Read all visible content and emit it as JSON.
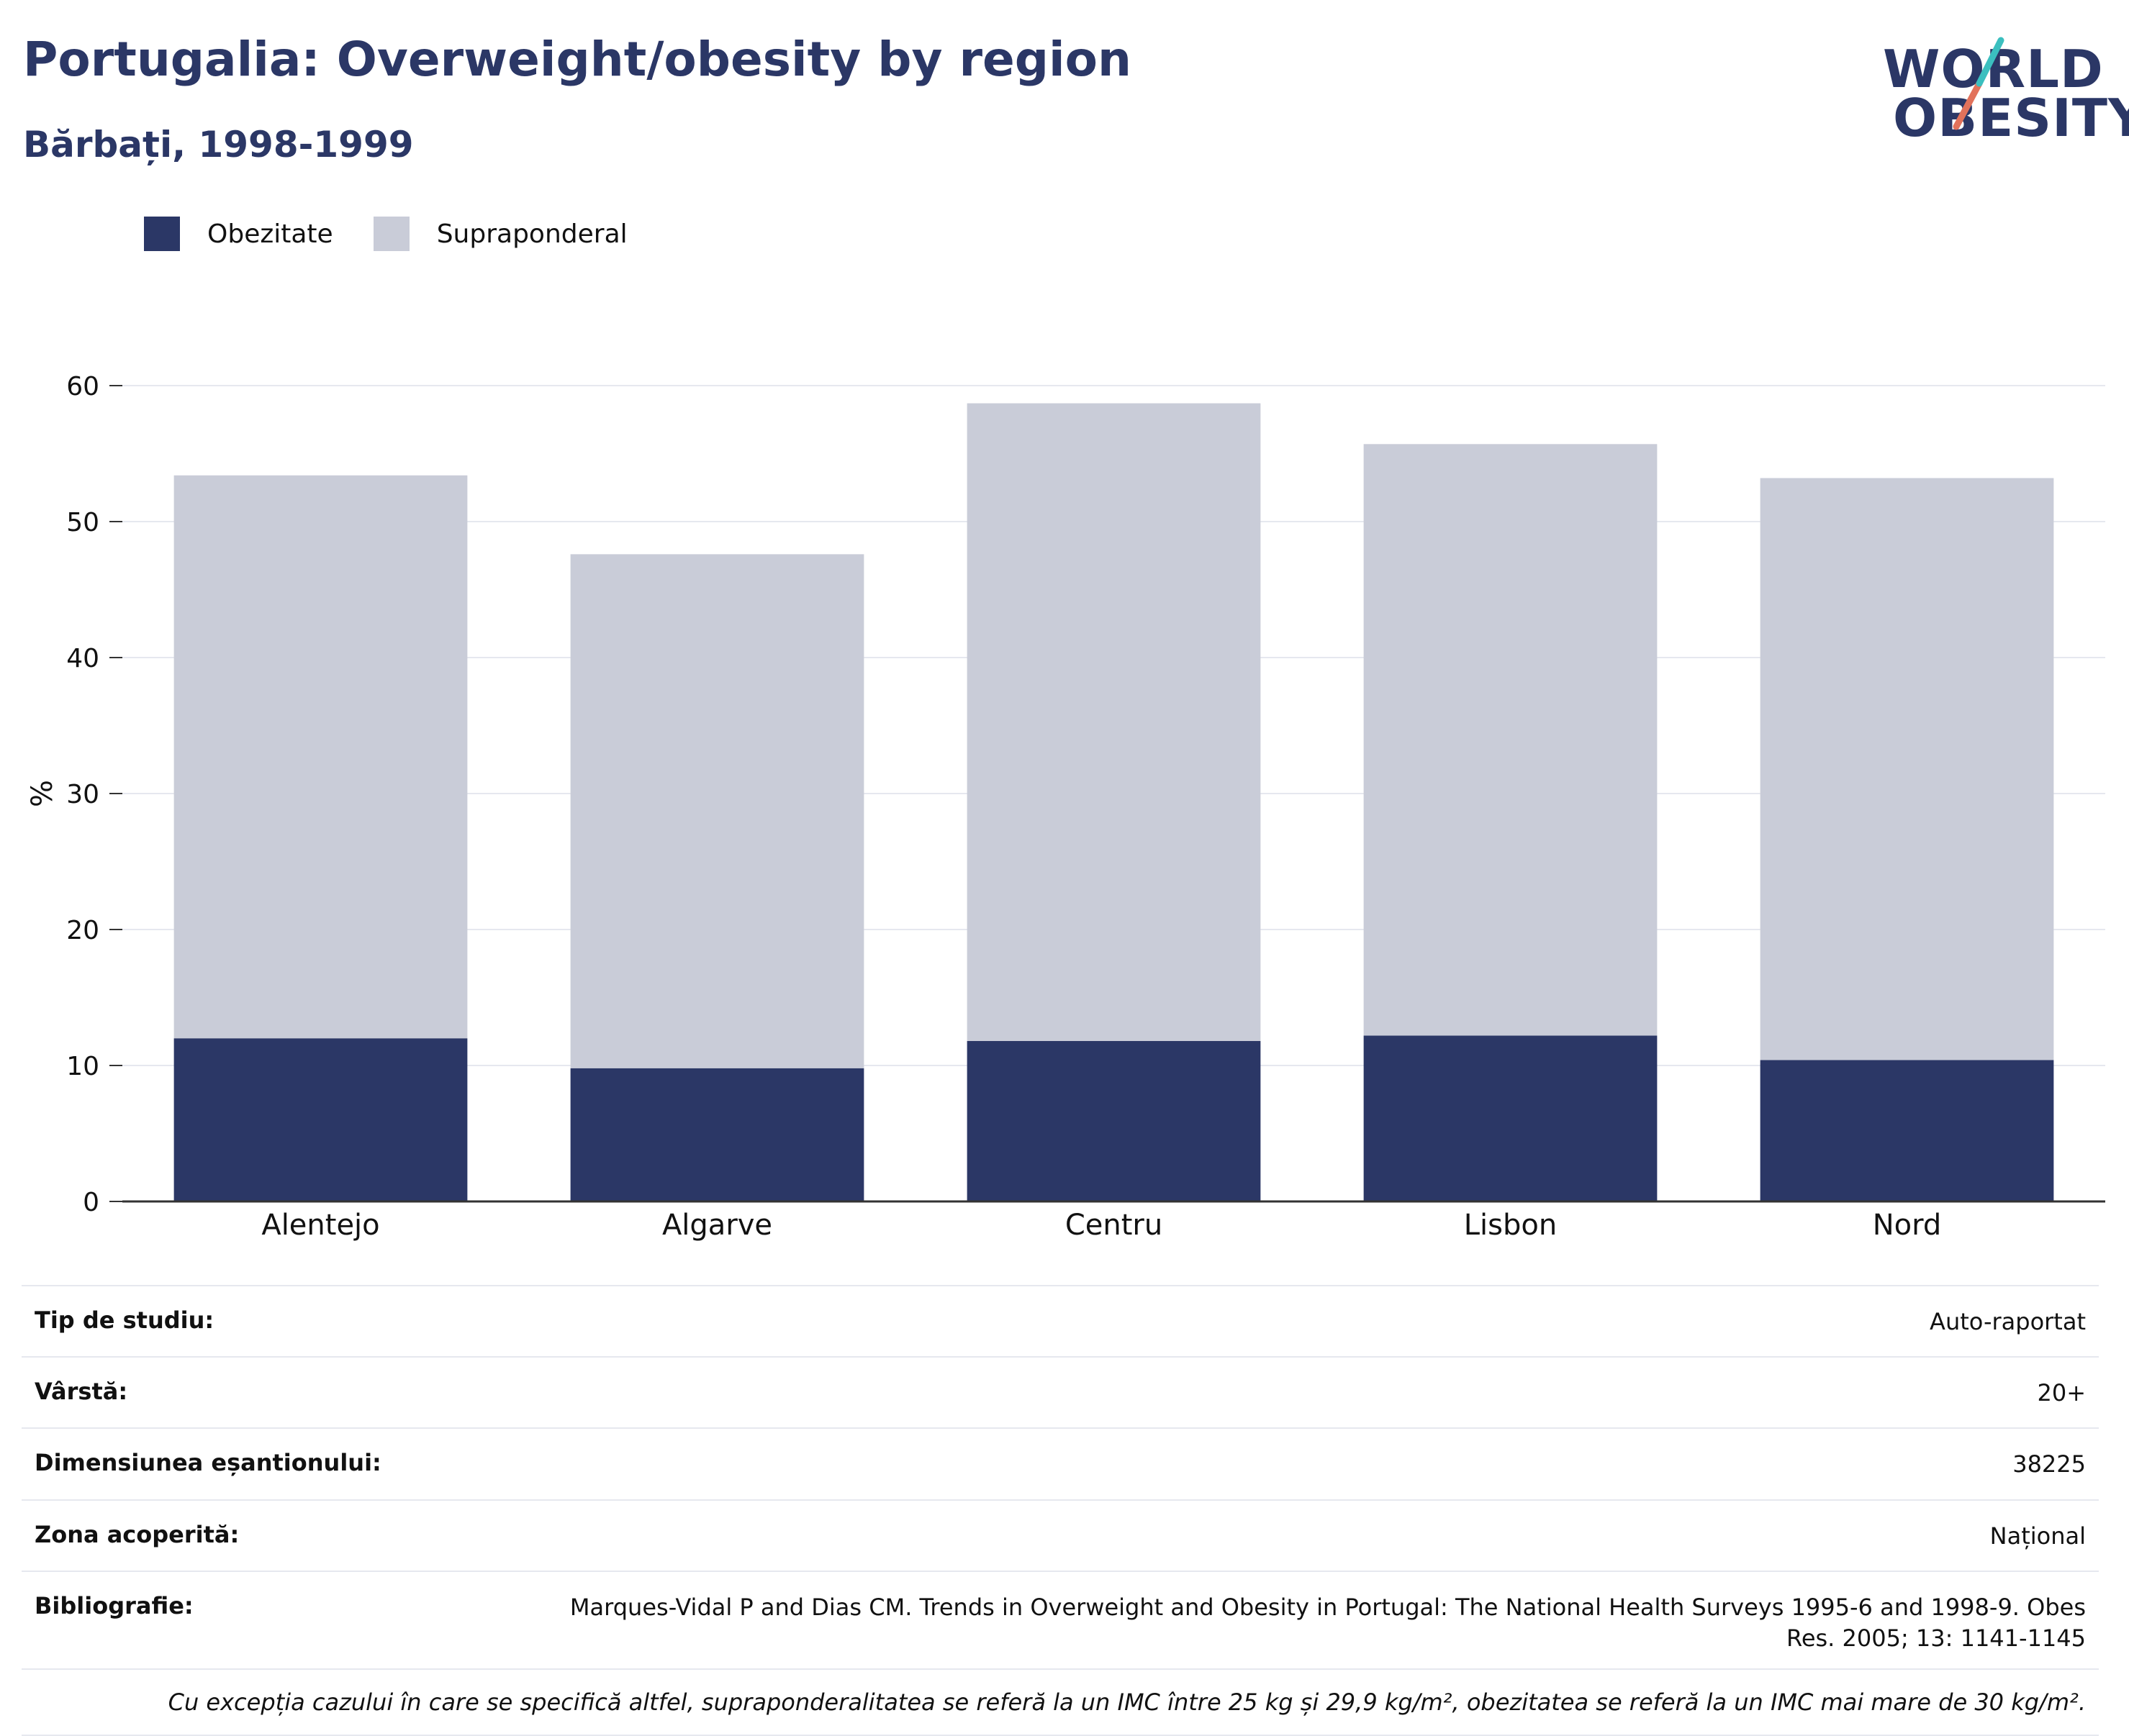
{
  "header": {
    "title": "Portugalia: Overweight/obesity by region",
    "subtitle": "Bărbați, 1998-1999"
  },
  "logo": {
    "line1": "WORLD",
    "line2": "OBESITY"
  },
  "legend": [
    {
      "label": "Obezitate",
      "color": "#2b3766"
    },
    {
      "label": "Supraponderal",
      "color": "#c9ccd8"
    }
  ],
  "chart_data": {
    "type": "bar",
    "stacked": true,
    "categories": [
      "Alentejo",
      "Algarve",
      "Centru",
      "Lisbon",
      "Nord"
    ],
    "series": [
      {
        "name": "Obezitate",
        "color": "#2b3766",
        "values": [
          12.0,
          9.8,
          11.8,
          12.2,
          10.4
        ]
      },
      {
        "name": "Supraponderal",
        "color": "#c9ccd8",
        "values": [
          41.4,
          37.8,
          46.9,
          43.5,
          42.8
        ]
      }
    ],
    "ylabel": "%",
    "ylim": [
      0,
      60
    ],
    "yticks": [
      0,
      10,
      20,
      30,
      40,
      50,
      60
    ],
    "grid": true,
    "legend_position": "top-left"
  },
  "info": {
    "rows": [
      {
        "label": "Tip de studiu:",
        "value": "Auto-raportat"
      },
      {
        "label": "Vârstă:",
        "value": "20+"
      },
      {
        "label": "Dimensiunea eșantionului:",
        "value": "38225"
      },
      {
        "label": "Zona acoperită:",
        "value": "Național"
      },
      {
        "label": "Bibliografie:",
        "value": "Marques-Vidal P and Dias CM. Trends in Overweight and Obesity in Portugal: The National Health Surveys 1995-6 and 1998-9. Obes Res. 2005; 13: 1141-1145"
      }
    ],
    "note": "Cu excepția cazului în care se specifică altfel, supraponderalitatea se referă la un IMC între 25 kg și 29,9 kg/m², obezitatea se referă la un IMC mai mare de 30 kg/m²."
  }
}
